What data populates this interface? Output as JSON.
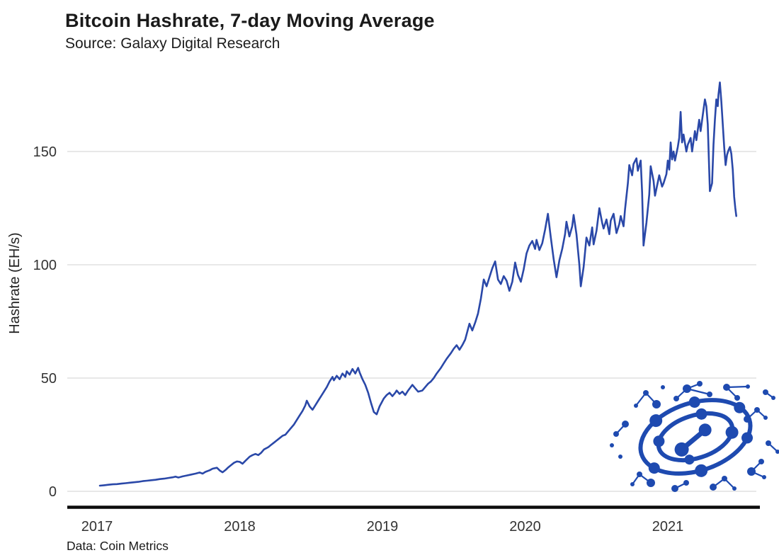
{
  "header": {
    "title": "Bitcoin Hashrate, 7-day Moving Average",
    "subtitle": "Source: Galaxy Digital Research"
  },
  "footer": {
    "credit": "Data: Coin Metrics"
  },
  "branding": {
    "logo": "galaxy-digital-network-logo",
    "logo_color": "#1e4ab0"
  },
  "chart_data": {
    "type": "line",
    "title": "Bitcoin Hashrate, 7-day Moving Average",
    "subtitle": "Source: Galaxy Digital Research",
    "footnote": "Data: Coin Metrics",
    "xlabel": "",
    "ylabel": "Hashrate (EH/s)",
    "grid": "horizontal-only",
    "legend": "none",
    "line_color": "#2a48a8",
    "ylim": [
      0,
      185
    ],
    "xlim": [
      2016.8,
      2021.65
    ],
    "y_ticks": [
      {
        "label": "0",
        "value": 0
      },
      {
        "label": "50",
        "value": 50
      },
      {
        "label": "100",
        "value": 100
      },
      {
        "label": "150",
        "value": 150
      }
    ],
    "x_ticks": [
      {
        "label": "2017",
        "value": 2017
      },
      {
        "label": "2018",
        "value": 2018
      },
      {
        "label": "2019",
        "value": 2019
      },
      {
        "label": "2020",
        "value": 2020
      },
      {
        "label": "2021",
        "value": 2021
      }
    ],
    "series": [
      {
        "name": "Bitcoin hashrate, 7-day moving average",
        "x_unit": "decimal year",
        "y_unit": "EH/s",
        "points": [
          [
            2017.02,
            2.5
          ],
          [
            2017.05,
            2.7
          ],
          [
            2017.08,
            2.9
          ],
          [
            2017.11,
            3.1
          ],
          [
            2017.14,
            3.2
          ],
          [
            2017.17,
            3.4
          ],
          [
            2017.2,
            3.6
          ],
          [
            2017.23,
            3.8
          ],
          [
            2017.26,
            4
          ],
          [
            2017.29,
            4.2
          ],
          [
            2017.32,
            4.5
          ],
          [
            2017.35,
            4.7
          ],
          [
            2017.38,
            4.9
          ],
          [
            2017.41,
            5.1
          ],
          [
            2017.44,
            5.4
          ],
          [
            2017.47,
            5.6
          ],
          [
            2017.5,
            5.9
          ],
          [
            2017.53,
            6.2
          ],
          [
            2017.55,
            6.5
          ],
          [
            2017.57,
            6.1
          ],
          [
            2017.6,
            6.6
          ],
          [
            2017.63,
            7
          ],
          [
            2017.66,
            7.4
          ],
          [
            2017.69,
            7.8
          ],
          [
            2017.72,
            8.3
          ],
          [
            2017.74,
            7.8
          ],
          [
            2017.76,
            8.6
          ],
          [
            2017.79,
            9.3
          ],
          [
            2017.81,
            10
          ],
          [
            2017.84,
            10.4
          ],
          [
            2017.86,
            9.2
          ],
          [
            2017.88,
            8.4
          ],
          [
            2017.9,
            9.4
          ],
          [
            2017.92,
            10.6
          ],
          [
            2017.94,
            11.6
          ],
          [
            2017.96,
            12.6
          ],
          [
            2017.98,
            13.2
          ],
          [
            2018,
            13
          ],
          [
            2018.02,
            12.2
          ],
          [
            2018.04,
            13.5
          ],
          [
            2018.07,
            15.3
          ],
          [
            2018.09,
            16
          ],
          [
            2018.11,
            16.5
          ],
          [
            2018.13,
            16
          ],
          [
            2018.15,
            17
          ],
          [
            2018.17,
            18.5
          ],
          [
            2018.2,
            19.5
          ],
          [
            2018.22,
            20.5
          ],
          [
            2018.24,
            21.5
          ],
          [
            2018.26,
            22.5
          ],
          [
            2018.28,
            23.5
          ],
          [
            2018.3,
            24.5
          ],
          [
            2018.32,
            25
          ],
          [
            2018.34,
            26.5
          ],
          [
            2018.36,
            28
          ],
          [
            2018.38,
            29.5
          ],
          [
            2018.4,
            31.5
          ],
          [
            2018.42,
            33.5
          ],
          [
            2018.44,
            35.5
          ],
          [
            2018.46,
            38
          ],
          [
            2018.47,
            40
          ],
          [
            2018.49,
            37.5
          ],
          [
            2018.51,
            36
          ],
          [
            2018.53,
            38
          ],
          [
            2018.55,
            40
          ],
          [
            2018.57,
            42
          ],
          [
            2018.59,
            44
          ],
          [
            2018.61,
            46
          ],
          [
            2018.63,
            48.5
          ],
          [
            2018.65,
            50.5
          ],
          [
            2018.66,
            49
          ],
          [
            2018.68,
            51
          ],
          [
            2018.7,
            49.5
          ],
          [
            2018.72,
            52
          ],
          [
            2018.74,
            50.5
          ],
          [
            2018.75,
            53
          ],
          [
            2018.77,
            51.5
          ],
          [
            2018.79,
            54
          ],
          [
            2018.81,
            52
          ],
          [
            2018.83,
            54.5
          ],
          [
            2018.84,
            52.5
          ],
          [
            2018.86,
            49.5
          ],
          [
            2018.88,
            47
          ],
          [
            2018.9,
            43.5
          ],
          [
            2018.92,
            39
          ],
          [
            2018.94,
            35
          ],
          [
            2018.96,
            34
          ],
          [
            2018.98,
            37.5
          ],
          [
            2019.01,
            41
          ],
          [
            2019.03,
            42.5
          ],
          [
            2019.05,
            43.5
          ],
          [
            2019.07,
            42
          ],
          [
            2019.09,
            43.5
          ],
          [
            2019.1,
            44.5
          ],
          [
            2019.12,
            43
          ],
          [
            2019.14,
            44
          ],
          [
            2019.16,
            42.5
          ],
          [
            2019.18,
            44.5
          ],
          [
            2019.21,
            47
          ],
          [
            2019.23,
            45.5
          ],
          [
            2019.25,
            44
          ],
          [
            2019.28,
            44.5
          ],
          [
            2019.3,
            46
          ],
          [
            2019.32,
            47.5
          ],
          [
            2019.34,
            48.5
          ],
          [
            2019.36,
            50
          ],
          [
            2019.38,
            52
          ],
          [
            2019.41,
            54.5
          ],
          [
            2019.43,
            56.5
          ],
          [
            2019.45,
            58.5
          ],
          [
            2019.48,
            61
          ],
          [
            2019.5,
            63
          ],
          [
            2019.52,
            64.5
          ],
          [
            2019.54,
            62.5
          ],
          [
            2019.56,
            64.5
          ],
          [
            2019.58,
            67
          ],
          [
            2019.61,
            74
          ],
          [
            2019.63,
            71
          ],
          [
            2019.65,
            74.5
          ],
          [
            2019.67,
            78.5
          ],
          [
            2019.69,
            85
          ],
          [
            2019.71,
            93.5
          ],
          [
            2019.73,
            90.5
          ],
          [
            2019.75,
            94.5
          ],
          [
            2019.77,
            98.5
          ],
          [
            2019.79,
            101.5
          ],
          [
            2019.81,
            93.5
          ],
          [
            2019.83,
            91.5
          ],
          [
            2019.85,
            95
          ],
          [
            2019.87,
            93
          ],
          [
            2019.89,
            88.5
          ],
          [
            2019.91,
            92.5
          ],
          [
            2019.93,
            101
          ],
          [
            2019.95,
            95.5
          ],
          [
            2019.97,
            92.5
          ],
          [
            2019.99,
            98
          ],
          [
            2020.01,
            105
          ],
          [
            2020.03,
            108.5
          ],
          [
            2020.05,
            110.5
          ],
          [
            2020.07,
            107
          ],
          [
            2020.08,
            111
          ],
          [
            2020.1,
            106.5
          ],
          [
            2020.12,
            109.5
          ],
          [
            2020.14,
            115.5
          ],
          [
            2020.16,
            122.5
          ],
          [
            2020.18,
            112
          ],
          [
            2020.2,
            102.5
          ],
          [
            2020.22,
            94.5
          ],
          [
            2020.24,
            102
          ],
          [
            2020.26,
            107
          ],
          [
            2020.28,
            113.5
          ],
          [
            2020.29,
            119
          ],
          [
            2020.31,
            112.5
          ],
          [
            2020.33,
            117
          ],
          [
            2020.34,
            122
          ],
          [
            2020.36,
            113.5
          ],
          [
            2020.38,
            100
          ],
          [
            2020.39,
            90.5
          ],
          [
            2020.41,
            99
          ],
          [
            2020.43,
            112
          ],
          [
            2020.45,
            108.5
          ],
          [
            2020.47,
            116.5
          ],
          [
            2020.48,
            109
          ],
          [
            2020.5,
            115
          ],
          [
            2020.52,
            125
          ],
          [
            2020.54,
            118.5
          ],
          [
            2020.55,
            116
          ],
          [
            2020.57,
            120
          ],
          [
            2020.59,
            113.5
          ],
          [
            2020.6,
            119.5
          ],
          [
            2020.62,
            122.5
          ],
          [
            2020.64,
            114
          ],
          [
            2020.66,
            118
          ],
          [
            2020.67,
            121.5
          ],
          [
            2020.69,
            117
          ],
          [
            2020.7,
            124.5
          ],
          [
            2020.72,
            136
          ],
          [
            2020.73,
            144
          ],
          [
            2020.75,
            139.5
          ],
          [
            2020.76,
            144.5
          ],
          [
            2020.78,
            147
          ],
          [
            2020.79,
            141.5
          ],
          [
            2020.81,
            146
          ],
          [
            2020.82,
            132
          ],
          [
            2020.83,
            108.5
          ],
          [
            2020.85,
            118.5
          ],
          [
            2020.87,
            131
          ],
          [
            2020.88,
            143.5
          ],
          [
            2020.9,
            137
          ],
          [
            2020.91,
            130.5
          ],
          [
            2020.93,
            136.5
          ],
          [
            2020.94,
            139.5
          ],
          [
            2020.96,
            134.5
          ],
          [
            2020.97,
            136
          ],
          [
            2020.99,
            140
          ],
          [
            2021,
            146
          ],
          [
            2021.01,
            142
          ],
          [
            2021.02,
            154
          ],
          [
            2021.03,
            146.5
          ],
          [
            2021.04,
            150
          ],
          [
            2021.05,
            146
          ],
          [
            2021.07,
            152
          ],
          [
            2021.08,
            156
          ],
          [
            2021.09,
            167.5
          ],
          [
            2021.1,
            154
          ],
          [
            2021.11,
            157.5
          ],
          [
            2021.13,
            150
          ],
          [
            2021.14,
            153
          ],
          [
            2021.16,
            156
          ],
          [
            2021.17,
            150
          ],
          [
            2021.19,
            159
          ],
          [
            2021.2,
            155
          ],
          [
            2021.22,
            164
          ],
          [
            2021.23,
            159
          ],
          [
            2021.25,
            168.5
          ],
          [
            2021.26,
            173
          ],
          [
            2021.27,
            170
          ],
          [
            2021.28,
            162
          ],
          [
            2021.295,
            132.5
          ],
          [
            2021.31,
            136
          ],
          [
            2021.32,
            153
          ],
          [
            2021.33,
            164
          ],
          [
            2021.34,
            173
          ],
          [
            2021.35,
            170
          ],
          [
            2021.355,
            175
          ],
          [
            2021.365,
            180.5
          ],
          [
            2021.375,
            172
          ],
          [
            2021.385,
            162
          ],
          [
            2021.395,
            152
          ],
          [
            2021.405,
            144
          ],
          [
            2021.415,
            148.5
          ],
          [
            2021.425,
            150.5
          ],
          [
            2021.435,
            152
          ],
          [
            2021.445,
            149
          ],
          [
            2021.455,
            142
          ],
          [
            2021.465,
            130
          ],
          [
            2021.473,
            125
          ],
          [
            2021.48,
            121.5
          ]
        ]
      }
    ]
  }
}
